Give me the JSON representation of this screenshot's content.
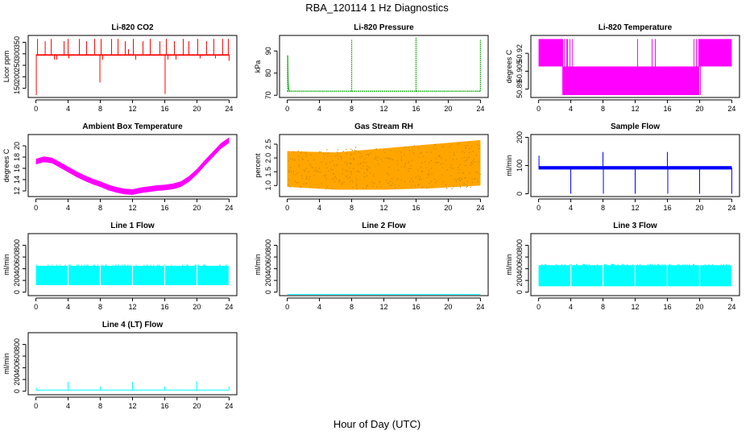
{
  "figure": {
    "title": "RBA_120114  1 Hz Diagnostics",
    "xlabel": "Hour of Day (UTC)"
  },
  "chart_data": [
    {
      "id": "co2",
      "type": "line",
      "title": "Li-820 CO2",
      "ylabel": "Licor ppm",
      "xlim": [
        0,
        24
      ],
      "ylim": [
        110,
        380
      ],
      "xticks": [
        0,
        4,
        8,
        12,
        16,
        20,
        24
      ],
      "xtick_labels": [
        "0",
        "4",
        "8",
        "12",
        "16",
        "20",
        "24"
      ],
      "yticks": [
        150,
        200,
        250,
        300,
        350
      ],
      "ytick_labels": [
        "150",
        "200",
        "250",
        "300",
        "350"
      ],
      "color": "#ff0000",
      "baseline": 295,
      "noise": 3,
      "spikes": [
        [
          0.05,
          120
        ],
        [
          0.2,
          365
        ],
        [
          1.15,
          355
        ],
        [
          1.9,
          365
        ],
        [
          2.3,
          275
        ],
        [
          2.6,
          275
        ],
        [
          3.5,
          355
        ],
        [
          4.0,
          365
        ],
        [
          4.1,
          280
        ],
        [
          5.4,
          365
        ],
        [
          6.3,
          355
        ],
        [
          7.3,
          365
        ],
        [
          7.95,
          175
        ],
        [
          8.1,
          365
        ],
        [
          8.3,
          275
        ],
        [
          9.4,
          365
        ],
        [
          10.2,
          365
        ],
        [
          11.1,
          355
        ],
        [
          11.5,
          320
        ],
        [
          12.1,
          365
        ],
        [
          12.4,
          275
        ],
        [
          13.3,
          355
        ],
        [
          14.2,
          365
        ],
        [
          15.4,
          355
        ],
        [
          16.05,
          125
        ],
        [
          16.2,
          365
        ],
        [
          16.4,
          275
        ],
        [
          17.2,
          355
        ],
        [
          17.4,
          275
        ],
        [
          18.3,
          365
        ],
        [
          19.0,
          355
        ],
        [
          20.1,
          365
        ],
        [
          20.4,
          280
        ],
        [
          21.2,
          355
        ],
        [
          22.1,
          365
        ],
        [
          22.3,
          280
        ],
        [
          23.2,
          365
        ],
        [
          23.9,
          365
        ],
        [
          24.0,
          270
        ]
      ]
    },
    {
      "id": "pressure",
      "type": "line",
      "title": "Li-820 Pressure",
      "ylabel": "kPa",
      "xlim": [
        0,
        24
      ],
      "ylim": [
        69,
        97
      ],
      "xticks": [
        0,
        4,
        8,
        12,
        16,
        20,
        24
      ],
      "xtick_labels": [
        "0",
        "4",
        "8",
        "12",
        "16",
        "20",
        "24"
      ],
      "yticks": [
        70,
        80,
        90
      ],
      "ytick_labels": [
        "70",
        "80",
        "90"
      ],
      "color": "#00aa00",
      "baseline": 71.8,
      "spikes": [
        [
          0.05,
          88
        ],
        [
          8.0,
          95
        ],
        [
          16.0,
          96
        ],
        [
          24.0,
          95
        ]
      ]
    },
    {
      "id": "licor_temp",
      "type": "line",
      "title": "Li-820 Temperature",
      "ylabel": "degrees C",
      "xlim": [
        0,
        24
      ],
      "ylim": [
        50.883,
        50.935
      ],
      "xticks": [
        0,
        4,
        8,
        12,
        16,
        20,
        24
      ],
      "xtick_labels": [
        "0",
        "4",
        "8",
        "12",
        "16",
        "20",
        "24"
      ],
      "yticks": [
        50.89,
        50.905,
        50.92
      ],
      "ytick_labels": [
        "50.89",
        "50.905",
        "50.92"
      ],
      "color": "#ff00ff",
      "levels": [
        50.885,
        50.909,
        50.932
      ],
      "segments": [
        {
          "start": 0.0,
          "end": 3.0,
          "low": 50.909,
          "high": 50.932
        },
        {
          "start": 3.0,
          "end": 19.9,
          "low": 50.885,
          "high": 50.909
        },
        {
          "start": 19.9,
          "end": 24.0,
          "low": 50.909,
          "high": 50.932
        }
      ]
    },
    {
      "id": "box_temp",
      "type": "line",
      "title": "Ambient Box Temperature",
      "ylabel": "degrees C",
      "xlim": [
        0,
        24
      ],
      "ylim": [
        11,
        22
      ],
      "xticks": [
        0,
        4,
        8,
        12,
        16,
        20,
        24
      ],
      "xtick_labels": [
        "0",
        "4",
        "8",
        "12",
        "16",
        "20",
        "24"
      ],
      "yticks": [
        12,
        14,
        16,
        18,
        20
      ],
      "ytick_labels": [
        "12",
        "14",
        "16",
        "18",
        "20"
      ],
      "color": "#ff00ff",
      "band": 0.5,
      "x": [
        0,
        1,
        2,
        3,
        4,
        5,
        6,
        7,
        8,
        9,
        10,
        11,
        12,
        13,
        14,
        15,
        16,
        17,
        18,
        19,
        20,
        21,
        22,
        23,
        24
      ],
      "y": [
        17.2,
        17.6,
        17.4,
        16.6,
        15.8,
        15.0,
        14.3,
        13.7,
        13.2,
        12.6,
        12.2,
        11.9,
        11.8,
        12.1,
        12.3,
        12.5,
        12.6,
        12.8,
        13.2,
        14.1,
        15.4,
        17.0,
        18.5,
        20.0,
        21.0
      ]
    },
    {
      "id": "rh",
      "type": "line",
      "title": "Gas Stream RH",
      "ylabel": "percent",
      "xlim": [
        0,
        24
      ],
      "ylim": [
        0.6,
        2.85
      ],
      "xticks": [
        0,
        4,
        8,
        12,
        16,
        20,
        24
      ],
      "xtick_labels": [
        "0",
        "4",
        "8",
        "12",
        "16",
        "20",
        "24"
      ],
      "yticks": [
        1.0,
        1.5,
        2.0,
        2.5
      ],
      "ytick_labels": [
        "1.0",
        "1.5",
        "2.0",
        "2.5"
      ],
      "color": "#ffa500",
      "x": [
        0,
        6,
        12,
        18,
        24
      ],
      "y_low": [
        0.95,
        0.85,
        0.85,
        0.9,
        1.0
      ],
      "y_high": [
        2.25,
        2.2,
        2.35,
        2.5,
        2.65
      ]
    },
    {
      "id": "sample_flow",
      "type": "line",
      "title": "Sample Flow",
      "ylabel": "ml/min",
      "xlim": [
        0,
        24
      ],
      "ylim": [
        -10,
        210
      ],
      "xticks": [
        0,
        4,
        8,
        12,
        16,
        20,
        24
      ],
      "xtick_labels": [
        "0",
        "4",
        "8",
        "12",
        "16",
        "20",
        "24"
      ],
      "yticks": [
        0,
        100,
        200
      ],
      "ytick_labels": [
        "0",
        "100",
        "200"
      ],
      "color": "#0000ff",
      "baseline": 92,
      "noise": 6,
      "spikes": [
        [
          0.05,
          135
        ],
        [
          4.0,
          0
        ],
        [
          8.0,
          148
        ],
        [
          8.05,
          0
        ],
        [
          12.0,
          0
        ],
        [
          16.0,
          148
        ],
        [
          16.05,
          0
        ],
        [
          20.0,
          0
        ],
        [
          24.0,
          0
        ]
      ]
    },
    {
      "id": "line1",
      "type": "line",
      "title": "Line 1 Flow",
      "ylabel": "ml/min",
      "xlim": [
        0,
        24
      ],
      "ylim": [
        -60,
        1000
      ],
      "xticks": [
        0,
        4,
        8,
        12,
        16,
        20,
        24
      ],
      "xtick_labels": [
        "0",
        "4",
        "8",
        "12",
        "16",
        "20",
        "24"
      ],
      "yticks": [
        0,
        200,
        400,
        600,
        800
      ],
      "ytick_labels": [
        "0",
        "200",
        "400",
        "600",
        "800"
      ],
      "color": "#00ffff",
      "low": 120,
      "high": 450,
      "gaps": [
        4,
        8,
        12,
        16,
        20
      ]
    },
    {
      "id": "line2",
      "type": "line",
      "title": "Line 2 Flow",
      "ylabel": "ml/min",
      "xlim": [
        0,
        24
      ],
      "ylim": [
        -60,
        1000
      ],
      "xticks": [
        0,
        4,
        8,
        12,
        16,
        20,
        24
      ],
      "xtick_labels": [
        "0",
        "4",
        "8",
        "12",
        "16",
        "20",
        "24"
      ],
      "yticks": [
        0,
        200,
        400,
        600,
        800
      ],
      "ytick_labels": [
        "0",
        "200",
        "400",
        "600",
        "800"
      ],
      "color": "#00ffff",
      "baseline": -40
    },
    {
      "id": "line3",
      "type": "line",
      "title": "Line 3 Flow",
      "ylabel": "ml/min",
      "xlim": [
        0,
        24
      ],
      "ylim": [
        -60,
        1000
      ],
      "xticks": [
        0,
        4,
        8,
        12,
        16,
        20,
        24
      ],
      "xtick_labels": [
        "0",
        "4",
        "8",
        "12",
        "16",
        "20",
        "24"
      ],
      "yticks": [
        0,
        200,
        400,
        600,
        800
      ],
      "ytick_labels": [
        "0",
        "200",
        "400",
        "600",
        "800"
      ],
      "color": "#00ffff",
      "low": 100,
      "high": 460,
      "gaps": [
        4,
        8,
        12,
        16,
        20
      ]
    },
    {
      "id": "line4",
      "type": "line",
      "title": "Line 4 (LT) Flow",
      "ylabel": "ml/min",
      "xlim": [
        0,
        24
      ],
      "ylim": [
        -60,
        1000
      ],
      "xticks": [
        0,
        4,
        8,
        12,
        16,
        20,
        24
      ],
      "xtick_labels": [
        "0",
        "4",
        "8",
        "12",
        "16",
        "20",
        "24"
      ],
      "yticks": [
        0,
        200,
        400,
        600,
        800
      ],
      "ytick_labels": [
        "0",
        "200",
        "400",
        "600",
        "800"
      ],
      "color": "#00ffff",
      "baseline": 20,
      "spikes": [
        [
          0.05,
          60
        ],
        [
          4.0,
          160
        ],
        [
          8.0,
          80
        ],
        [
          12.0,
          160
        ],
        [
          16.0,
          80
        ],
        [
          20.0,
          170
        ],
        [
          24.0,
          80
        ]
      ]
    }
  ]
}
